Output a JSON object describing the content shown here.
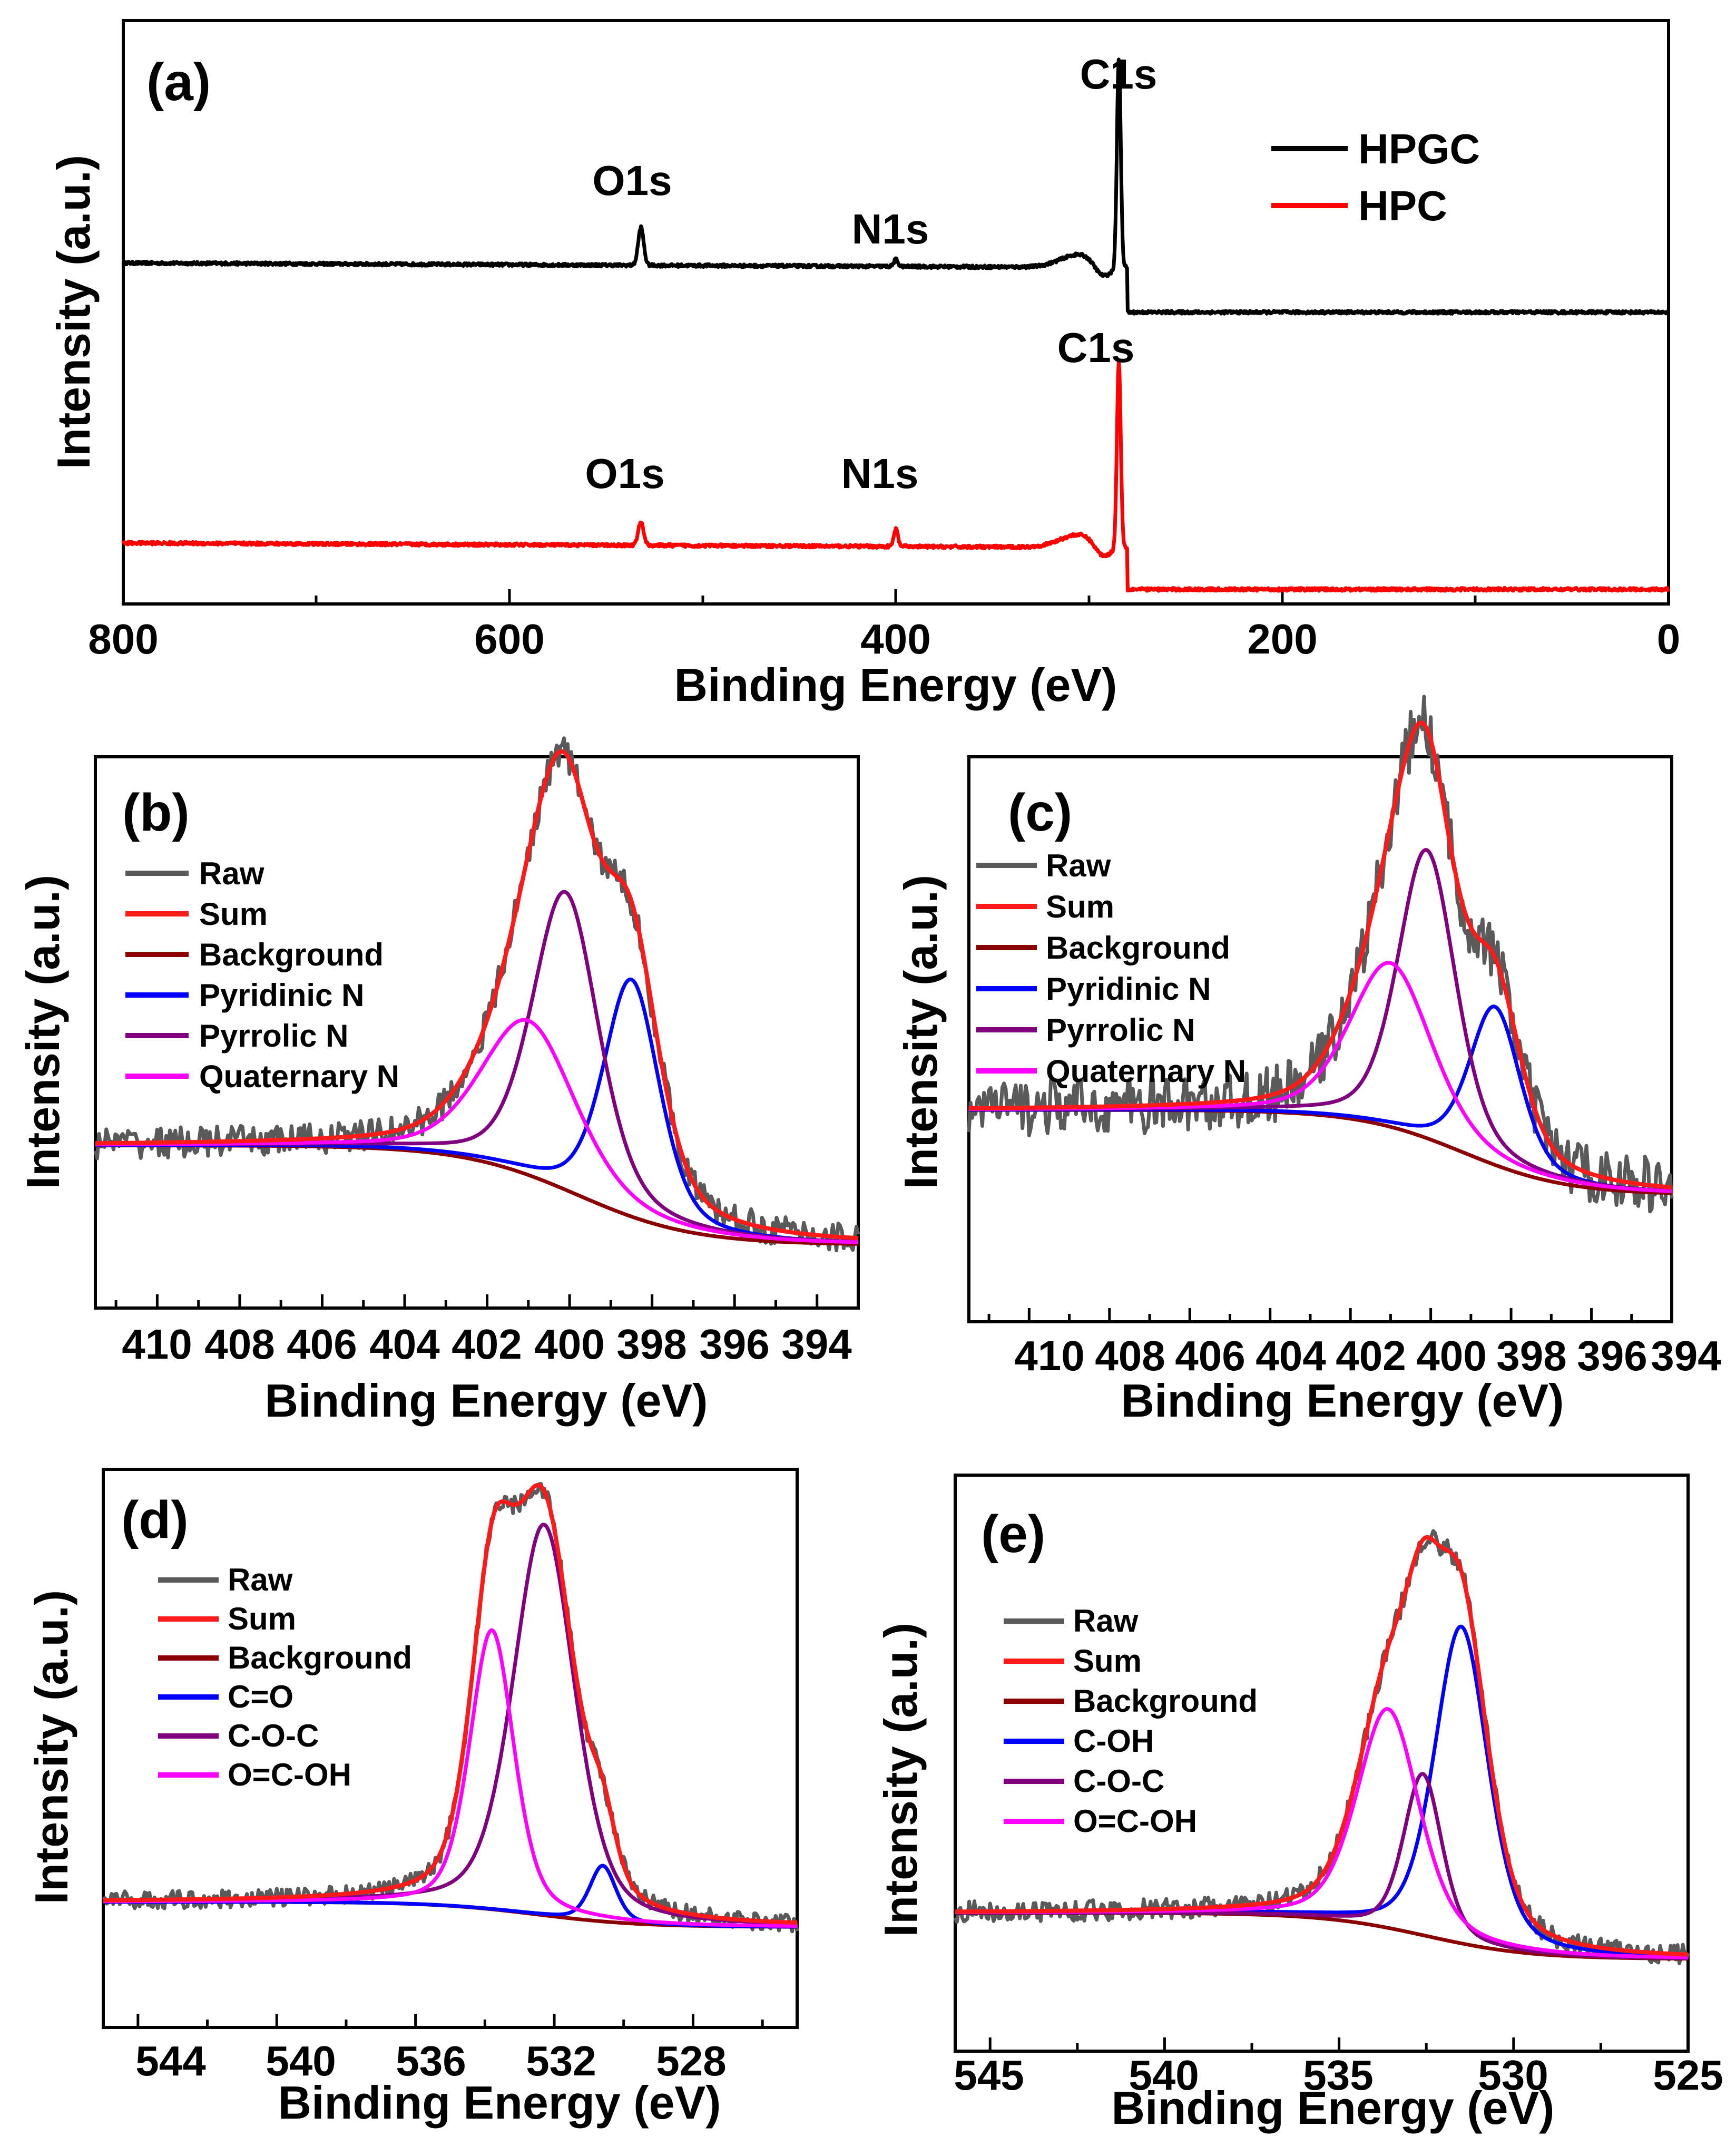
{
  "figure": {
    "panels": [
      {
        "id": "a",
        "label": "(a)",
        "xlabel": "Binding Energy (eV)",
        "ylabel": "Intensity (a.u.)",
        "ticks": [
          "800",
          "600",
          "400",
          "200",
          "0"
        ]
      },
      {
        "id": "b",
        "label": "(b)",
        "xlabel": "Binding Energy (eV)",
        "ylabel": "Intensity (a.u.)",
        "ticks": [
          "410",
          "408",
          "406",
          "404",
          "402",
          "400",
          "398",
          "396",
          "394"
        ],
        "legend": [
          "Raw",
          "Sum",
          "Background",
          "Pyridinic N",
          "Pyrrolic N",
          "Quaternary N"
        ]
      },
      {
        "id": "c",
        "label": "(c)",
        "xlabel": "Binding Energy (eV)",
        "ylabel": "Intensity (a.u.)",
        "ticks": [
          "410",
          "408",
          "406",
          "404",
          "402",
          "400",
          "398",
          "396",
          "394"
        ],
        "legend": [
          "Raw",
          "Sum",
          "Background",
          "Pyridinic N",
          "Pyrrolic N",
          "Quaternary N"
        ]
      },
      {
        "id": "d",
        "label": "(d)",
        "xlabel": "Binding Energy (eV)",
        "ylabel": "Intensity (a.u.)",
        "ticks": [
          "544",
          "540",
          "536",
          "532",
          "528"
        ],
        "legend": [
          "Raw",
          "Sum",
          "Background",
          "C=O",
          "C-O-C",
          "O=C-OH"
        ]
      },
      {
        "id": "e",
        "label": "(e)",
        "xlabel": "Binding Energy (eV)",
        "ylabel": "Intensity (a.u.)",
        "ticks": [
          "545",
          "540",
          "535",
          "530",
          "525"
        ],
        "legend": [
          "Raw",
          "Sum",
          "Background",
          "C-OH",
          "C-O-C",
          "O=C-OH"
        ]
      }
    ]
  },
  "chart_data": [
    {
      "type": "line",
      "panel": "a",
      "title": "(a)",
      "xlabel": "Binding Energy (eV)",
      "ylabel": "Intensity (a.u.)",
      "xlim": [
        800,
        0
      ],
      "ylim": [
        0,
        100
      ],
      "x_ticks": [
        800,
        600,
        400,
        200,
        0
      ],
      "legend_position": "top-right",
      "series": [
        {
          "name": "HPGC",
          "color": "#000000",
          "baseline": 58,
          "tail_level": 50,
          "tail_start_eV": 280,
          "peaks": [
            {
              "name": "C1s",
              "center": 284.6,
              "width": 1.4,
              "height": 36
            },
            {
              "name": "O1s",
              "center": 532,
              "width": 2,
              "height": 6.5
            },
            {
              "name": "N1s",
              "center": 400,
              "width": 1.5,
              "height": 1.2
            }
          ]
        },
        {
          "name": "HPC",
          "color": "#ff0000",
          "baseline": 10,
          "tail_level": 2.5,
          "tail_start_eV": 280,
          "peaks": [
            {
              "name": "C1s",
              "center": 284.6,
              "width": 1.4,
              "height": 32
            },
            {
              "name": "O1s",
              "center": 532,
              "width": 2,
              "height": 4
            },
            {
              "name": "N1s",
              "center": 400,
              "width": 1.5,
              "height": 3
            }
          ]
        }
      ],
      "annotations": [
        {
          "text": "C1s",
          "x": 284.6,
          "y": 97
        },
        {
          "text": "O1s",
          "x": 532,
          "y": 74
        },
        {
          "text": "N1s",
          "x": 400,
          "y": 62
        },
        {
          "text": "C1s",
          "x": 284.6,
          "y": 46
        },
        {
          "text": "O1s",
          "x": 532,
          "y": 19
        },
        {
          "text": "N1s",
          "x": 400,
          "y": 19
        }
      ]
    },
    {
      "type": "line",
      "panel": "b",
      "title": "(b)",
      "xlabel": "Binding Energy (eV)",
      "ylabel": "Intensity (a.u.)",
      "xlim": [
        411.5,
        393
      ],
      "ylim": [
        0,
        100
      ],
      "x_ticks": [
        410,
        408,
        406,
        404,
        402,
        400,
        398,
        396,
        394
      ],
      "legend_position": "top-left",
      "background": {
        "start": 29.5,
        "end": 11.5,
        "center": 399.8,
        "width": 1.4
      },
      "components": [
        {
          "name": "Pyridinic N",
          "color": "#0000ff",
          "center": 398.5,
          "width": 0.8,
          "height": 43
        },
        {
          "name": "Pyrrolic N",
          "color": "#800080",
          "center": 400.1,
          "width": 0.95,
          "height": 54
        },
        {
          "name": "Quaternary N",
          "color": "#ff00ff",
          "center": 401.0,
          "width": 1.35,
          "height": 28
        }
      ],
      "noise": 2.8
    },
    {
      "type": "line",
      "panel": "c",
      "title": "(c)",
      "xlabel": "Binding Energy (eV)",
      "ylabel": "Intensity (a.u.)",
      "xlim": [
        411.5,
        394
      ],
      "ylim": [
        0,
        100
      ],
      "x_ticks": [
        410,
        408,
        406,
        404,
        402,
        400,
        398,
        396,
        394
      ],
      "legend_position": "top-left",
      "background": {
        "start": 37.5,
        "end": 22.5,
        "center": 399.2,
        "width": 1.3
      },
      "components": [
        {
          "name": "Pyridinic N",
          "color": "#0000ff",
          "center": 398.4,
          "width": 0.75,
          "height": 28
        },
        {
          "name": "Pyrrolic N",
          "color": "#800080",
          "center": 400.1,
          "width": 0.85,
          "height": 51
        },
        {
          "name": "Quaternary N",
          "color": "#ff00ff",
          "center": 401.0,
          "width": 1.2,
          "height": 29
        }
      ],
      "noise": 5
    },
    {
      "type": "line",
      "panel": "d",
      "title": "(d)",
      "xlabel": "Binding Energy (eV)",
      "ylabel": "Intensity (a.u.)",
      "xlim": [
        545,
        525
      ],
      "ylim": [
        0,
        100
      ],
      "x_ticks": [
        544,
        540,
        536,
        532,
        528
      ],
      "legend_position": "top-left",
      "background": {
        "start": 22.5,
        "end": 18,
        "center": 532.5,
        "width": 1.5
      },
      "components": [
        {
          "name": "C=O",
          "color": "#0000ff",
          "center": 530.6,
          "width": 0.45,
          "height": 10
        },
        {
          "name": "C-O-C",
          "color": "#800080",
          "center": 532.3,
          "width": 1.05,
          "height": 70
        },
        {
          "name": "O=C-OH",
          "color": "#ff00ff",
          "center": 533.8,
          "width": 0.75,
          "height": 50
        }
      ],
      "noise": 1.6
    },
    {
      "type": "line",
      "panel": "e",
      "title": "(e)",
      "xlabel": "Binding Energy (eV)",
      "ylabel": "Intensity (a.u.)",
      "xlim": [
        546,
        525
      ],
      "ylim": [
        0,
        100
      ],
      "x_ticks": [
        545,
        540,
        535,
        530,
        525
      ],
      "legend_position": "top-left",
      "background": {
        "start": 24,
        "end": 16,
        "center": 532.5,
        "width": 1.5
      },
      "components": [
        {
          "name": "C-OH",
          "color": "#0000ff",
          "center": 531.5,
          "width": 0.9,
          "height": 55
        },
        {
          "name": "C-O-C",
          "color": "#800080",
          "center": 532.6,
          "width": 0.65,
          "height": 28
        },
        {
          "name": "O=C-OH",
          "color": "#ff00ff",
          "center": 533.6,
          "width": 1.05,
          "height": 38
        }
      ],
      "noise": 1.8
    }
  ]
}
